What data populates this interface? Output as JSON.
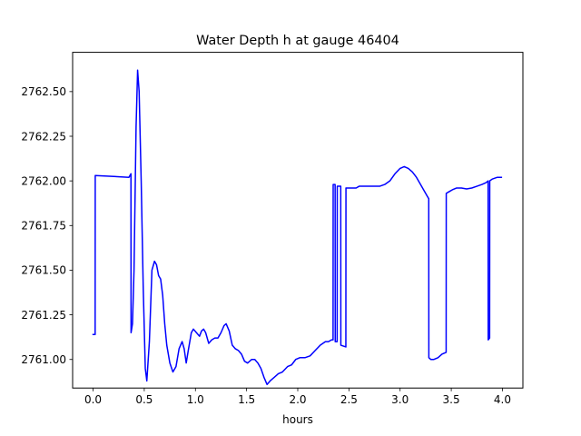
{
  "chart_data": {
    "type": "line",
    "title": "Water Depth h at gauge 46404",
    "xlabel": "hours",
    "ylabel": "",
    "xlim": [
      -0.2,
      4.2
    ],
    "ylim": [
      2760.84,
      2762.72
    ],
    "xticks": [
      0.0,
      0.5,
      1.0,
      1.5,
      2.0,
      2.5,
      3.0,
      3.5,
      4.0
    ],
    "xtick_labels": [
      "0.0",
      "0.5",
      "1.0",
      "1.5",
      "2.0",
      "2.5",
      "3.0",
      "3.5",
      "4.0"
    ],
    "yticks": [
      2761.0,
      2761.25,
      2761.5,
      2761.75,
      2762.0,
      2762.25,
      2762.5
    ],
    "ytick_labels": [
      "2761.00",
      "2761.25",
      "2761.50",
      "2761.75",
      "2762.00",
      "2762.25",
      "2762.50"
    ],
    "grid": false,
    "legend": "none",
    "series": [
      {
        "color": "#0000ff",
        "points": [
          [
            0.0,
            2761.14
          ],
          [
            0.02,
            2761.14
          ],
          [
            0.021,
            2762.03
          ],
          [
            0.2,
            2762.025
          ],
          [
            0.35,
            2762.02
          ],
          [
            0.37,
            2762.04
          ],
          [
            0.371,
            2761.15
          ],
          [
            0.385,
            2761.2
          ],
          [
            0.4,
            2761.5
          ],
          [
            0.42,
            2762.3
          ],
          [
            0.435,
            2762.62
          ],
          [
            0.45,
            2762.5
          ],
          [
            0.47,
            2762.0
          ],
          [
            0.49,
            2761.4
          ],
          [
            0.51,
            2760.95
          ],
          [
            0.525,
            2760.88
          ],
          [
            0.55,
            2761.1
          ],
          [
            0.575,
            2761.5
          ],
          [
            0.6,
            2761.55
          ],
          [
            0.62,
            2761.53
          ],
          [
            0.64,
            2761.47
          ],
          [
            0.66,
            2761.45
          ],
          [
            0.68,
            2761.36
          ],
          [
            0.7,
            2761.2
          ],
          [
            0.72,
            2761.08
          ],
          [
            0.75,
            2760.98
          ],
          [
            0.78,
            2760.93
          ],
          [
            0.81,
            2760.96
          ],
          [
            0.84,
            2761.06
          ],
          [
            0.87,
            2761.1
          ],
          [
            0.89,
            2761.06
          ],
          [
            0.91,
            2760.98
          ],
          [
            0.93,
            2761.05
          ],
          [
            0.96,
            2761.15
          ],
          [
            0.98,
            2761.17
          ],
          [
            1.01,
            2761.15
          ],
          [
            1.04,
            2761.13
          ],
          [
            1.06,
            2761.16
          ],
          [
            1.08,
            2761.17
          ],
          [
            1.1,
            2761.15
          ],
          [
            1.13,
            2761.09
          ],
          [
            1.16,
            2761.11
          ],
          [
            1.19,
            2761.12
          ],
          [
            1.22,
            2761.12
          ],
          [
            1.25,
            2761.15
          ],
          [
            1.28,
            2761.19
          ],
          [
            1.3,
            2761.2
          ],
          [
            1.33,
            2761.16
          ],
          [
            1.36,
            2761.08
          ],
          [
            1.39,
            2761.06
          ],
          [
            1.42,
            2761.05
          ],
          [
            1.45,
            2761.03
          ],
          [
            1.48,
            2760.99
          ],
          [
            1.51,
            2760.98
          ],
          [
            1.55,
            2761.0
          ],
          [
            1.58,
            2761.0
          ],
          [
            1.61,
            2760.98
          ],
          [
            1.64,
            2760.95
          ],
          [
            1.67,
            2760.9
          ],
          [
            1.7,
            2760.86
          ],
          [
            1.73,
            2760.88
          ],
          [
            1.77,
            2760.9
          ],
          [
            1.81,
            2760.92
          ],
          [
            1.85,
            2760.93
          ],
          [
            1.9,
            2760.96
          ],
          [
            1.94,
            2760.97
          ],
          [
            1.98,
            2761.0
          ],
          [
            2.02,
            2761.01
          ],
          [
            2.07,
            2761.01
          ],
          [
            2.12,
            2761.02
          ],
          [
            2.17,
            2761.05
          ],
          [
            2.22,
            2761.08
          ],
          [
            2.27,
            2761.1
          ],
          [
            2.3,
            2761.1
          ],
          [
            2.33,
            2761.11
          ],
          [
            2.345,
            2761.11
          ],
          [
            2.346,
            2761.98
          ],
          [
            2.365,
            2761.98
          ],
          [
            2.366,
            2761.1
          ],
          [
            2.385,
            2761.1
          ],
          [
            2.386,
            2761.97
          ],
          [
            2.41,
            2761.97
          ],
          [
            2.42,
            2761.97
          ],
          [
            2.421,
            2761.08
          ],
          [
            2.47,
            2761.07
          ],
          [
            2.471,
            2761.96
          ],
          [
            2.5,
            2761.96
          ],
          [
            2.53,
            2761.96
          ],
          [
            2.57,
            2761.96
          ],
          [
            2.6,
            2761.97
          ],
          [
            2.64,
            2761.97
          ],
          [
            2.7,
            2761.97
          ],
          [
            2.75,
            2761.97
          ],
          [
            2.8,
            2761.97
          ],
          [
            2.85,
            2761.98
          ],
          [
            2.9,
            2762.0
          ],
          [
            2.95,
            2762.04
          ],
          [
            3.0,
            2762.07
          ],
          [
            3.04,
            2762.08
          ],
          [
            3.08,
            2762.07
          ],
          [
            3.12,
            2762.05
          ],
          [
            3.16,
            2762.02
          ],
          [
            3.2,
            2761.98
          ],
          [
            3.24,
            2761.94
          ],
          [
            3.27,
            2761.91
          ],
          [
            3.28,
            2761.9
          ],
          [
            3.281,
            2761.01
          ],
          [
            3.3,
            2761.0
          ],
          [
            3.33,
            2761.0
          ],
          [
            3.37,
            2761.01
          ],
          [
            3.41,
            2761.03
          ],
          [
            3.45,
            2761.04
          ],
          [
            3.451,
            2761.93
          ],
          [
            3.48,
            2761.94
          ],
          [
            3.51,
            2761.95
          ],
          [
            3.55,
            2761.96
          ],
          [
            3.6,
            2761.96
          ],
          [
            3.65,
            2761.955
          ],
          [
            3.7,
            2761.96
          ],
          [
            3.75,
            2761.97
          ],
          [
            3.8,
            2761.98
          ],
          [
            3.84,
            2761.99
          ],
          [
            3.86,
            2762.0
          ],
          [
            3.861,
            2761.11
          ],
          [
            3.875,
            2761.12
          ],
          [
            3.876,
            2762.0
          ],
          [
            3.9,
            2762.01
          ],
          [
            3.95,
            2762.02
          ],
          [
            3.99,
            2762.02
          ]
        ]
      }
    ]
  }
}
